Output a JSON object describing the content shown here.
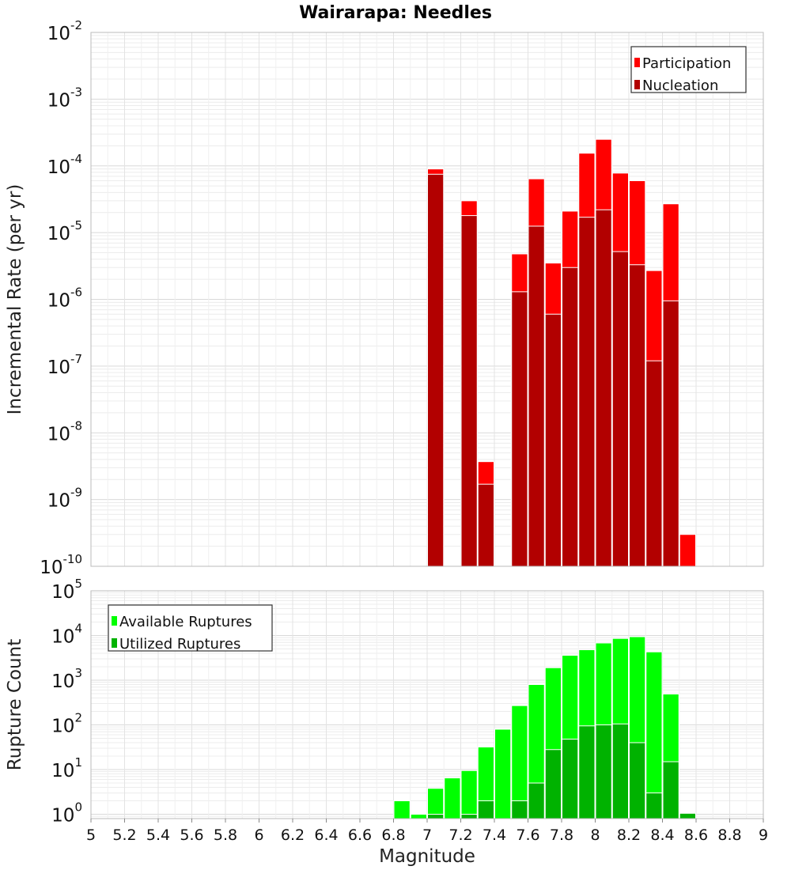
{
  "chart_data": [
    {
      "type": "bar",
      "title": "Wairarapa: Needles",
      "ylabel": "Incremental Rate (per yr)",
      "xlabel": "",
      "y_scale": "log",
      "ylim": [
        1e-10,
        0.01
      ],
      "xlim": [
        5,
        9
      ],
      "grid": true,
      "legend_position": "top-right",
      "y_tick_mantissas": [
        "10",
        "10",
        "10",
        "10",
        "10",
        "10",
        "10",
        "10",
        "10"
      ],
      "y_tick_exponents": [
        "-10",
        "-9",
        "-8",
        "-7",
        "-6",
        "-5",
        "-4",
        "-3",
        "-2"
      ],
      "bar_width": 0.1,
      "series": [
        {
          "name": "Participation",
          "color": "#ff0000",
          "points": [
            {
              "x": 7.05,
              "y": 9e-05
            },
            {
              "x": 7.25,
              "y": 3e-05
            },
            {
              "x": 7.35,
              "y": 3.7e-09
            },
            {
              "x": 7.55,
              "y": 4.8e-06
            },
            {
              "x": 7.65,
              "y": 6.4e-05
            },
            {
              "x": 7.75,
              "y": 3.5e-06
            },
            {
              "x": 7.85,
              "y": 2.1e-05
            },
            {
              "x": 7.95,
              "y": 0.000155
            },
            {
              "x": 8.05,
              "y": 0.00025
            },
            {
              "x": 8.15,
              "y": 7.8e-05
            },
            {
              "x": 8.25,
              "y": 6e-05
            },
            {
              "x": 8.35,
              "y": 2.7e-06
            },
            {
              "x": 8.45,
              "y": 2.7e-05
            },
            {
              "x": 8.55,
              "y": 3e-10
            }
          ]
        },
        {
          "name": "Nucleation",
          "color": "#b20000",
          "points": [
            {
              "x": 7.05,
              "y": 7.5e-05
            },
            {
              "x": 7.25,
              "y": 1.8e-05
            },
            {
              "x": 7.35,
              "y": 1.7e-09
            },
            {
              "x": 7.55,
              "y": 1.3e-06
            },
            {
              "x": 7.65,
              "y": 1.25e-05
            },
            {
              "x": 7.75,
              "y": 6e-07
            },
            {
              "x": 7.85,
              "y": 3e-06
            },
            {
              "x": 7.95,
              "y": 1.7e-05
            },
            {
              "x": 8.05,
              "y": 2.2e-05
            },
            {
              "x": 8.15,
              "y": 5.2e-06
            },
            {
              "x": 8.25,
              "y": 3.3e-06
            },
            {
              "x": 8.35,
              "y": 1.2e-07
            },
            {
              "x": 8.45,
              "y": 9.5e-07
            }
          ]
        }
      ]
    },
    {
      "type": "bar",
      "title": "",
      "ylabel": "Rupture Count",
      "xlabel": "Magnitude",
      "y_scale": "log",
      "ylim": [
        0.8,
        100000.0
      ],
      "xlim": [
        5,
        9
      ],
      "grid": true,
      "legend_position": "top-left",
      "x_ticks": [
        "5",
        "5.2",
        "5.4",
        "5.6",
        "5.8",
        "6",
        "6.2",
        "6.4",
        "6.6",
        "6.8",
        "7",
        "7.2",
        "7.4",
        "7.6",
        "7.8",
        "8",
        "8.2",
        "8.4",
        "8.6",
        "8.8",
        "9"
      ],
      "y_tick_mantissas": [
        "10",
        "10",
        "10",
        "10",
        "10",
        "10"
      ],
      "y_tick_exponents": [
        "0",
        "1",
        "2",
        "3",
        "4",
        "5"
      ],
      "bar_width": 0.1,
      "series": [
        {
          "name": "Available Ruptures",
          "color": "#00ff00",
          "points": [
            {
              "x": 6.85,
              "y": 2
            },
            {
              "x": 6.95,
              "y": 1
            },
            {
              "x": 7.05,
              "y": 3.8
            },
            {
              "x": 7.15,
              "y": 6.5
            },
            {
              "x": 7.25,
              "y": 9.5
            },
            {
              "x": 7.35,
              "y": 32
            },
            {
              "x": 7.45,
              "y": 80
            },
            {
              "x": 7.55,
              "y": 270
            },
            {
              "x": 7.65,
              "y": 800
            },
            {
              "x": 7.75,
              "y": 1900
            },
            {
              "x": 7.85,
              "y": 3600
            },
            {
              "x": 7.95,
              "y": 4800
            },
            {
              "x": 8.05,
              "y": 6800
            },
            {
              "x": 8.15,
              "y": 8600
            },
            {
              "x": 8.25,
              "y": 9400
            },
            {
              "x": 8.35,
              "y": 4300
            },
            {
              "x": 8.45,
              "y": 490
            },
            {
              "x": 8.55,
              "y": 1.05
            }
          ]
        },
        {
          "name": "Utilized Ruptures",
          "color": "#00b200",
          "points": [
            {
              "x": 7.05,
              "y": 1
            },
            {
              "x": 7.25,
              "y": 1
            },
            {
              "x": 7.35,
              "y": 2
            },
            {
              "x": 7.55,
              "y": 2
            },
            {
              "x": 7.65,
              "y": 5
            },
            {
              "x": 7.75,
              "y": 28
            },
            {
              "x": 7.85,
              "y": 48
            },
            {
              "x": 7.95,
              "y": 95
            },
            {
              "x": 8.05,
              "y": 100
            },
            {
              "x": 8.15,
              "y": 105
            },
            {
              "x": 8.25,
              "y": 40
            },
            {
              "x": 8.35,
              "y": 3
            },
            {
              "x": 8.45,
              "y": 15
            },
            {
              "x": 8.55,
              "y": 1.05
            }
          ]
        }
      ]
    }
  ]
}
